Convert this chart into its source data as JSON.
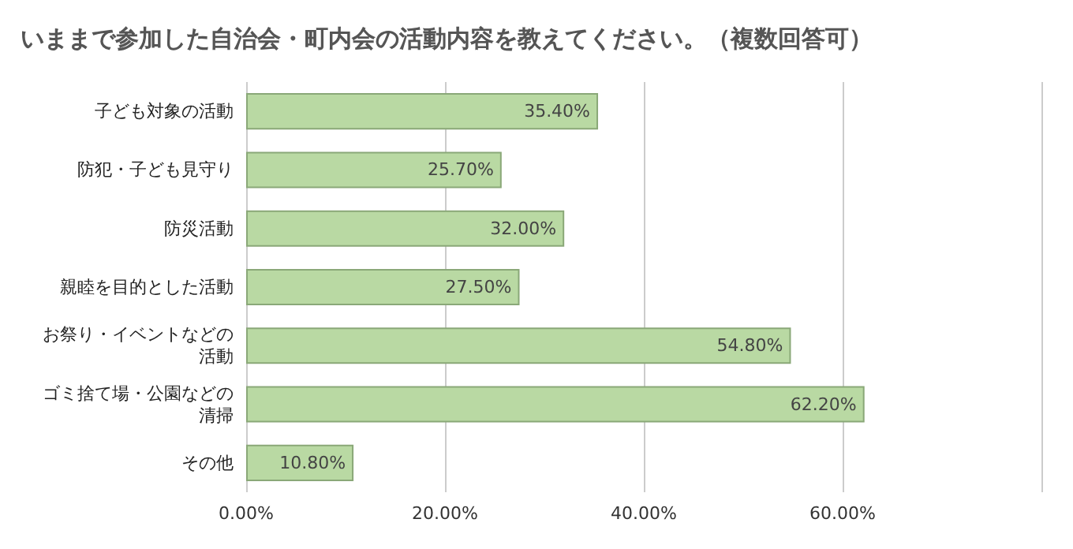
{
  "chart_data": {
    "type": "bar",
    "orientation": "horizontal",
    "title": "いままで参加した自治会・町内会の活動内容を教えてください。（複数回答可）",
    "categories": [
      "子ども対象の活動",
      "防犯・子ども見守り",
      "防災活動",
      "親睦を目的とした活動",
      "お祭り・イベントなどの活動",
      "ゴミ捨て場・公園などの清掃",
      "その他"
    ],
    "values": [
      35.4,
      25.7,
      32.0,
      27.5,
      54.8,
      62.2,
      10.8
    ],
    "value_labels": [
      "35.40%",
      "25.70%",
      "32.00%",
      "27.50%",
      "54.80%",
      "62.20%",
      "10.80%"
    ],
    "color": "#b9d9a3",
    "xlim": [
      0,
      80
    ],
    "xticks": [
      {
        "value": 0,
        "label": "0.00%"
      },
      {
        "value": 20,
        "label": "20.00%"
      },
      {
        "value": 40,
        "label": "40.00%"
      },
      {
        "value": 60,
        "label": "60.00%"
      },
      {
        "value": 80,
        "label": null
      }
    ],
    "grid": "x"
  }
}
